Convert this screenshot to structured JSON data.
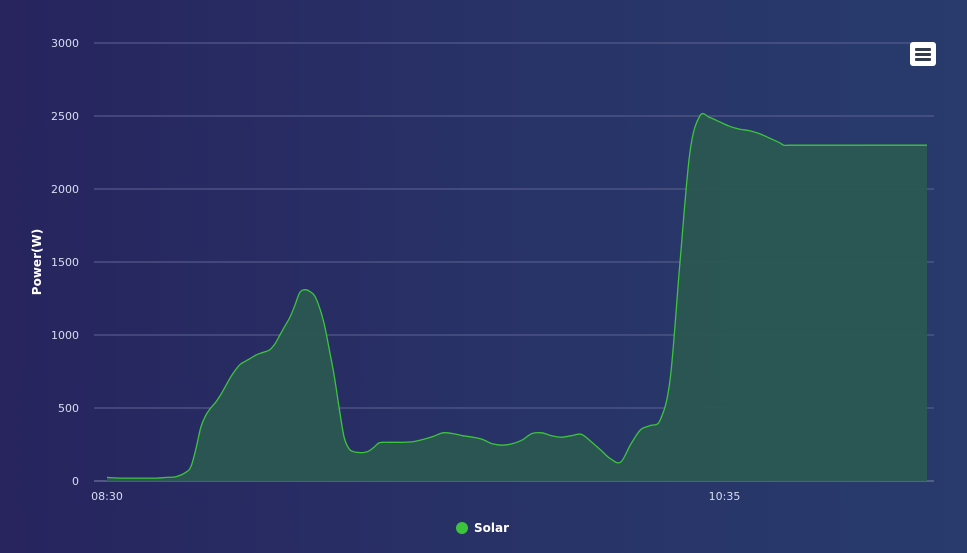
{
  "chart_data": {
    "type": "area",
    "title": "",
    "xlabel": "",
    "ylabel": "Power(W)",
    "ylim": [
      0,
      3000
    ],
    "yticks": [
      0,
      500,
      1000,
      1500,
      2000,
      2500,
      3000
    ],
    "xtick_labels": [
      {
        "x": 0,
        "label": "08:30"
      },
      {
        "x": 125,
        "label": "10:35"
      }
    ],
    "x_unit": "minutes after 08:30",
    "grid": true,
    "legend_position": "bottom-center",
    "series": [
      {
        "name": "Solar",
        "color": "#3cc43c",
        "fill": "#2a5752",
        "x": [
          0,
          3,
          6,
          10,
          12,
          14,
          16,
          17,
          18,
          19,
          20,
          21,
          22,
          23,
          24,
          25,
          26,
          27,
          28,
          29,
          30,
          31,
          32,
          33,
          34,
          35,
          36,
          37,
          38,
          39,
          40,
          41,
          42,
          43,
          44,
          45,
          46,
          47,
          48,
          49,
          50,
          51,
          52,
          53,
          54,
          55,
          56,
          57,
          58,
          59,
          60,
          62,
          64,
          66,
          68,
          70,
          72,
          74,
          76,
          78,
          80,
          82,
          84,
          86,
          88,
          90,
          92,
          94,
          96,
          98,
          100,
          102,
          104,
          106,
          108,
          110,
          112,
          114,
          116,
          118,
          120,
          122,
          124,
          126,
          128,
          130,
          132,
          134,
          136,
          137,
          138,
          139,
          140,
          141,
          142,
          143,
          144,
          145,
          146,
          147,
          148,
          149,
          150,
          152,
          154,
          156,
          158,
          160,
          162,
          164,
          166
        ],
        "values": [
          25,
          20,
          20,
          20,
          25,
          30,
          60,
          100,
          220,
          370,
          450,
          500,
          540,
          590,
          650,
          710,
          760,
          800,
          820,
          840,
          860,
          875,
          885,
          900,
          940,
          1000,
          1060,
          1120,
          1200,
          1290,
          1310,
          1300,
          1270,
          1190,
          1070,
          900,
          720,
          500,
          300,
          220,
          200,
          195,
          195,
          205,
          230,
          260,
          265,
          265,
          265,
          265,
          265,
          270,
          285,
          305,
          330,
          325,
          310,
          300,
          285,
          255,
          245,
          255,
          280,
          325,
          330,
          310,
          300,
          310,
          320,
          270,
          210,
          150,
          130,
          250,
          350,
          380,
          420,
          700,
          1500,
          2250,
          2500,
          2490,
          2460,
          2430,
          2410,
          2400,
          2380,
          2350,
          2320,
          2300,
          2300,
          2300,
          2300,
          2300,
          2300,
          2300,
          2300,
          2300,
          2300,
          2300,
          2300,
          2300,
          2300,
          2300,
          2300,
          2300,
          2300,
          2300,
          2300,
          2300,
          2300
        ]
      }
    ]
  },
  "legend": {
    "label": "Solar",
    "color": "#3cc43c"
  },
  "menu": {
    "icon": "hamburger-menu-icon"
  }
}
